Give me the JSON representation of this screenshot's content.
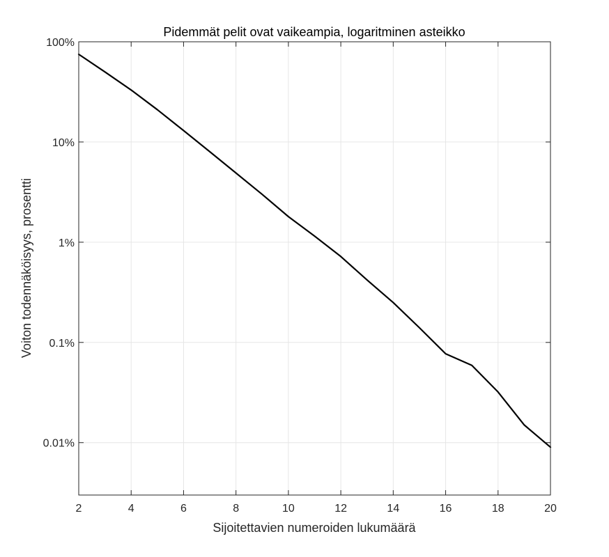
{
  "chart_data": {
    "type": "line",
    "title": "Pidemmät pelit ovat vaikeampia, logaritminen asteikko",
    "xlabel": "Sijoitettavien numeroiden lukumäärä",
    "ylabel": "Voiton todennäköisyys, prosentti",
    "xlim": [
      2,
      20
    ],
    "ylim": [
      0.003,
      100
    ],
    "yscale": "log",
    "grid": true,
    "x_ticks": [
      2,
      4,
      6,
      8,
      10,
      12,
      14,
      16,
      18,
      20
    ],
    "y_ticks": [
      {
        "value": 0.01,
        "label": "0.01%"
      },
      {
        "value": 0.1,
        "label": "0.1%"
      },
      {
        "value": 1,
        "label": "1%"
      },
      {
        "value": 10,
        "label": "10%"
      },
      {
        "value": 100,
        "label": "100%"
      }
    ],
    "series": [
      {
        "color": "#000000",
        "x": [
          2,
          3,
          4,
          5,
          6,
          7,
          8,
          9,
          10,
          11,
          12,
          13,
          14,
          15,
          16,
          17,
          18,
          19,
          20
        ],
        "y": [
          75,
          50,
          33,
          21,
          13,
          8,
          4.9,
          3,
          1.8,
          1.15,
          0.72,
          0.42,
          0.25,
          0.14,
          0.077,
          0.059,
          0.032,
          0.015,
          0.009
        ]
      }
    ]
  }
}
